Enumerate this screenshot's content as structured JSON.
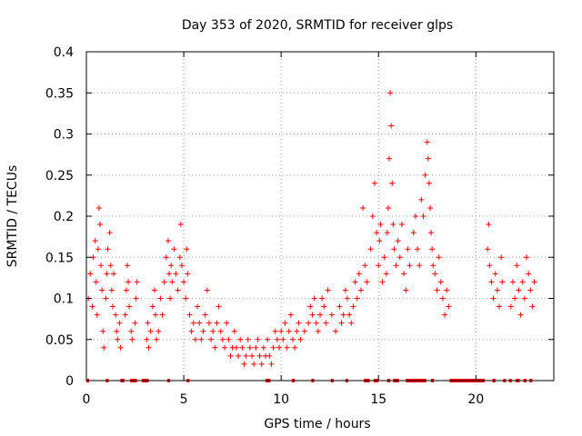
{
  "chart_data": {
    "type": "scatter",
    "title": "Day 353 of 2020, SRMTID for receiver glps",
    "xlabel": "GPS time / hours",
    "ylabel": "SRMTID / TECUs",
    "xlim": [
      0,
      24
    ],
    "ylim": [
      0,
      0.4
    ],
    "x_ticks": [
      0,
      5,
      10,
      15,
      20
    ],
    "x_tick_labels": [
      "0",
      "5",
      "10",
      "15",
      "20"
    ],
    "y_ticks": [
      0,
      0.05,
      0.1,
      0.15,
      0.2,
      0.25,
      0.3,
      0.35,
      0.4
    ],
    "y_tick_labels": [
      "0",
      "0.05",
      "0.1",
      "0.15",
      "0.2",
      "0.25",
      "0.3",
      "0.35",
      "0.4"
    ],
    "grid": true,
    "marker": "+",
    "color": "#ff0000",
    "series": [
      {
        "name": "SRMTID",
        "points": [
          [
            0.1,
            0.1
          ],
          [
            0.2,
            0.13
          ],
          [
            0.3,
            0.09
          ],
          [
            0.35,
            0.15
          ],
          [
            0.45,
            0.17
          ],
          [
            0.5,
            0.12
          ],
          [
            0.55,
            0.08
          ],
          [
            0.6,
            0.16
          ],
          [
            0.65,
            0.21
          ],
          [
            0.7,
            0.19
          ],
          [
            0.75,
            0.14
          ],
          [
            0.8,
            0.11
          ],
          [
            0.85,
            0.06
          ],
          [
            0.9,
            0.04
          ],
          [
            1.0,
            0.1
          ],
          [
            1.05,
            0.13
          ],
          [
            1.1,
            0.16
          ],
          [
            1.2,
            0.18
          ],
          [
            1.25,
            0.14
          ],
          [
            1.3,
            0.11
          ],
          [
            1.35,
            0.09
          ],
          [
            1.4,
            0.13
          ],
          [
            1.5,
            0.08
          ],
          [
            1.55,
            0.06
          ],
          [
            1.6,
            0.05
          ],
          [
            1.7,
            0.07
          ],
          [
            1.75,
            0.04
          ],
          [
            2.0,
            0.08
          ],
          [
            2.05,
            0.11
          ],
          [
            2.1,
            0.14
          ],
          [
            2.15,
            0.12
          ],
          [
            2.2,
            0.09
          ],
          [
            2.3,
            0.06
          ],
          [
            2.35,
            0.05
          ],
          [
            2.5,
            0.07
          ],
          [
            2.55,
            0.1
          ],
          [
            2.6,
            0.12
          ],
          [
            3.1,
            0.05
          ],
          [
            3.15,
            0.07
          ],
          [
            3.2,
            0.04
          ],
          [
            3.3,
            0.06
          ],
          [
            3.4,
            0.09
          ],
          [
            3.5,
            0.11
          ],
          [
            3.55,
            0.08
          ],
          [
            3.6,
            0.05
          ],
          [
            3.7,
            0.06
          ],
          [
            3.8,
            0.1
          ],
          [
            3.9,
            0.08
          ],
          [
            4.0,
            0.12
          ],
          [
            4.1,
            0.15
          ],
          [
            4.2,
            0.17
          ],
          [
            4.25,
            0.13
          ],
          [
            4.3,
            0.1
          ],
          [
            4.35,
            0.14
          ],
          [
            4.4,
            0.12
          ],
          [
            4.5,
            0.16
          ],
          [
            4.6,
            0.13
          ],
          [
            4.7,
            0.11
          ],
          [
            4.8,
            0.15
          ],
          [
            4.85,
            0.19
          ],
          [
            4.9,
            0.14
          ],
          [
            5.0,
            0.12
          ],
          [
            5.1,
            0.1
          ],
          [
            5.15,
            0.16
          ],
          [
            5.2,
            0.13
          ],
          [
            5.3,
            0.08
          ],
          [
            5.4,
            0.06
          ],
          [
            5.5,
            0.07
          ],
          [
            5.6,
            0.05
          ],
          [
            5.7,
            0.09
          ],
          [
            5.8,
            0.07
          ],
          [
            5.9,
            0.05
          ],
          [
            6.0,
            0.06
          ],
          [
            6.1,
            0.08
          ],
          [
            6.2,
            0.11
          ],
          [
            6.3,
            0.07
          ],
          [
            6.4,
            0.05
          ],
          [
            6.5,
            0.06
          ],
          [
            6.6,
            0.04
          ],
          [
            6.7,
            0.07
          ],
          [
            6.8,
            0.09
          ],
          [
            6.9,
            0.06
          ],
          [
            7.0,
            0.05
          ],
          [
            7.1,
            0.04
          ],
          [
            7.2,
            0.07
          ],
          [
            7.3,
            0.05
          ],
          [
            7.4,
            0.03
          ],
          [
            7.5,
            0.04
          ],
          [
            7.6,
            0.06
          ],
          [
            7.7,
            0.04
          ],
          [
            7.8,
            0.03
          ],
          [
            7.9,
            0.05
          ],
          [
            8.0,
            0.04
          ],
          [
            8.1,
            0.02
          ],
          [
            8.2,
            0.03
          ],
          [
            8.3,
            0.05
          ],
          [
            8.4,
            0.04
          ],
          [
            8.5,
            0.03
          ],
          [
            8.6,
            0.02
          ],
          [
            8.7,
            0.04
          ],
          [
            8.8,
            0.05
          ],
          [
            8.9,
            0.03
          ],
          [
            9.0,
            0.02
          ],
          [
            9.1,
            0.04
          ],
          [
            9.2,
            0.03
          ],
          [
            9.3,
            0.05
          ],
          [
            9.4,
            0.03
          ],
          [
            9.5,
            0.02
          ],
          [
            9.6,
            0.04
          ],
          [
            9.7,
            0.06
          ],
          [
            9.8,
            0.05
          ],
          [
            9.9,
            0.04
          ],
          [
            10.0,
            0.06
          ],
          [
            10.1,
            0.05
          ],
          [
            10.2,
            0.07
          ],
          [
            10.3,
            0.04
          ],
          [
            10.4,
            0.06
          ],
          [
            10.5,
            0.08
          ],
          [
            10.6,
            0.05
          ],
          [
            10.7,
            0.04
          ],
          [
            10.8,
            0.06
          ],
          [
            10.9,
            0.07
          ],
          [
            11.0,
            0.05
          ],
          [
            11.2,
            0.06
          ],
          [
            11.4,
            0.07
          ],
          [
            11.5,
            0.09
          ],
          [
            11.6,
            0.08
          ],
          [
            11.7,
            0.1
          ],
          [
            11.8,
            0.07
          ],
          [
            11.9,
            0.06
          ],
          [
            12.0,
            0.08
          ],
          [
            12.1,
            0.1
          ],
          [
            12.2,
            0.09
          ],
          [
            12.3,
            0.07
          ],
          [
            12.4,
            0.11
          ],
          [
            12.6,
            0.08
          ],
          [
            12.8,
            0.06
          ],
          [
            13.0,
            0.09
          ],
          [
            13.1,
            0.07
          ],
          [
            13.2,
            0.08
          ],
          [
            13.3,
            0.11
          ],
          [
            13.4,
            0.1
          ],
          [
            13.5,
            0.08
          ],
          [
            13.6,
            0.07
          ],
          [
            13.7,
            0.09
          ],
          [
            13.8,
            0.12
          ],
          [
            13.9,
            0.1
          ],
          [
            14.0,
            0.13
          ],
          [
            14.1,
            0.11
          ],
          [
            14.2,
            0.21
          ],
          [
            14.3,
            0.14
          ],
          [
            14.4,
            0.12
          ],
          [
            14.6,
            0.16
          ],
          [
            14.7,
            0.2
          ],
          [
            14.8,
            0.24
          ],
          [
            14.9,
            0.18
          ],
          [
            15.0,
            0.14
          ],
          [
            15.05,
            0.17
          ],
          [
            15.1,
            0.19
          ],
          [
            15.2,
            0.12
          ],
          [
            15.3,
            0.15
          ],
          [
            15.4,
            0.13
          ],
          [
            15.45,
            0.18
          ],
          [
            15.5,
            0.21
          ],
          [
            15.55,
            0.27
          ],
          [
            15.6,
            0.35
          ],
          [
            15.65,
            0.31
          ],
          [
            15.7,
            0.24
          ],
          [
            15.75,
            0.19
          ],
          [
            15.8,
            0.16
          ],
          [
            15.9,
            0.14
          ],
          [
            16.0,
            0.17
          ],
          [
            16.1,
            0.15
          ],
          [
            16.2,
            0.19
          ],
          [
            16.3,
            0.13
          ],
          [
            16.4,
            0.11
          ],
          [
            16.5,
            0.16
          ],
          [
            16.6,
            0.14
          ],
          [
            16.8,
            0.18
          ],
          [
            16.9,
            0.2
          ],
          [
            17.0,
            0.16
          ],
          [
            17.1,
            0.14
          ],
          [
            17.2,
            0.22
          ],
          [
            17.3,
            0.2
          ],
          [
            17.4,
            0.25
          ],
          [
            17.5,
            0.29
          ],
          [
            17.55,
            0.27
          ],
          [
            17.6,
            0.24
          ],
          [
            17.65,
            0.21
          ],
          [
            17.7,
            0.18
          ],
          [
            17.75,
            0.16
          ],
          [
            17.8,
            0.14
          ],
          [
            17.9,
            0.13
          ],
          [
            18.0,
            0.11
          ],
          [
            18.1,
            0.15
          ],
          [
            18.2,
            0.12
          ],
          [
            18.3,
            0.1
          ],
          [
            18.4,
            0.08
          ],
          [
            18.5,
            0.11
          ],
          [
            18.6,
            0.09
          ],
          [
            20.6,
            0.16
          ],
          [
            20.65,
            0.19
          ],
          [
            20.7,
            0.14
          ],
          [
            20.8,
            0.12
          ],
          [
            20.9,
            0.1
          ],
          [
            21.0,
            0.13
          ],
          [
            21.1,
            0.11
          ],
          [
            21.2,
            0.09
          ],
          [
            21.3,
            0.15
          ],
          [
            21.35,
            0.12
          ],
          [
            21.8,
            0.09
          ],
          [
            21.9,
            0.12
          ],
          [
            22.0,
            0.1
          ],
          [
            22.1,
            0.14
          ],
          [
            22.2,
            0.11
          ],
          [
            22.3,
            0.08
          ],
          [
            22.4,
            0.12
          ],
          [
            22.5,
            0.1
          ],
          [
            22.6,
            0.15
          ],
          [
            22.7,
            0.13
          ],
          [
            22.8,
            0.11
          ],
          [
            22.9,
            0.09
          ],
          [
            23.0,
            0.12
          ]
        ]
      }
    ],
    "zero_segments": [
      [
        0.0,
        0.1
      ],
      [
        1.0,
        1.1
      ],
      [
        1.75,
        1.95
      ],
      [
        2.25,
        2.6
      ],
      [
        2.85,
        3.2
      ],
      [
        4.15,
        4.25
      ],
      [
        5.15,
        5.25
      ],
      [
        9.2,
        9.45
      ],
      [
        10.55,
        10.7
      ],
      [
        11.55,
        11.65
      ],
      [
        12.55,
        12.65
      ],
      [
        13.3,
        13.4
      ],
      [
        14.25,
        14.55
      ],
      [
        14.75,
        15.0
      ],
      [
        15.45,
        15.55
      ],
      [
        15.75,
        16.05
      ],
      [
        16.4,
        17.45
      ],
      [
        17.7,
        17.8
      ],
      [
        18.65,
        20.45
      ],
      [
        20.85,
        21.0
      ],
      [
        21.4,
        21.5
      ],
      [
        21.7,
        21.8
      ],
      [
        22.05,
        22.25
      ],
      [
        22.45,
        22.55
      ],
      [
        22.75,
        22.85
      ]
    ]
  }
}
